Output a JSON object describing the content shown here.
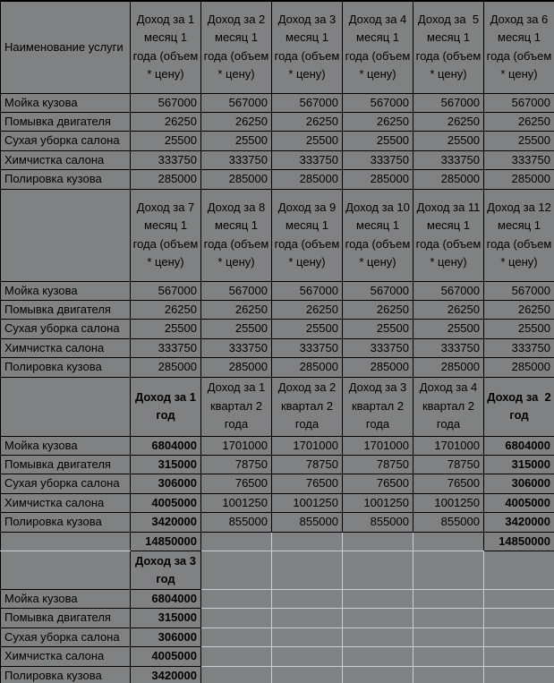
{
  "table": {
    "corner_header": "Наименование услуги",
    "services": [
      "Мойка кузова",
      "Помывка двигателя",
      "Сухая уборка салона",
      "Химчистка салона",
      "Полировка кузова"
    ],
    "month_headers_1_6": [
      "Доход за 1 месяц 1 года (объем * цену)",
      "Доход за 2 месяц 1 года (объем * цену)",
      "Доход за 3 месяц 1 года (объем * цену)",
      "Доход за 4 месяц 1 года (объем * цену)",
      "Доход за  5 месяц 1 года (объем * цену)",
      "Доход за 6 месяц 1 года (объем * цену)"
    ],
    "month_headers_7_12": [
      "Доход за 7 месяц 1 года (объем * цену)",
      "Доход за 8 месяц 1 года (объем * цену)",
      "Доход за 9 месяц 1 года (объем * цену)",
      "Доход за 10 месяц 1 года (объем * цену)",
      "Доход за 11 месяц 1 года (объем * цену)",
      "Доход за 12 месяц 1 года (объем * цену)"
    ],
    "year1_header": "Доход за 1 год",
    "quarter_headers": [
      "Доход за 1 квартал 2 года",
      "Доход за 2 квартал 2 года",
      "Доход за 3 квартал 2 года",
      "Доход за 4 квартал 2 года"
    ],
    "year2_header": "Доход за  2 год",
    "year3_header": "Доход за 3 год",
    "monthly_values": [
      "567000",
      "26250",
      "25500",
      "333750",
      "285000"
    ],
    "quarterly_values": [
      "1701000",
      "78750",
      "76500",
      "1001250",
      "855000"
    ],
    "yearly_values": [
      "6804000",
      "315000",
      "306000",
      "4005000",
      "3420000"
    ],
    "yearly_total": "14850000"
  },
  "colors": {
    "cell_fill": "#7f8182",
    "gridline": "#c9ced6",
    "cell_border": "#000000",
    "text": "#000000"
  }
}
